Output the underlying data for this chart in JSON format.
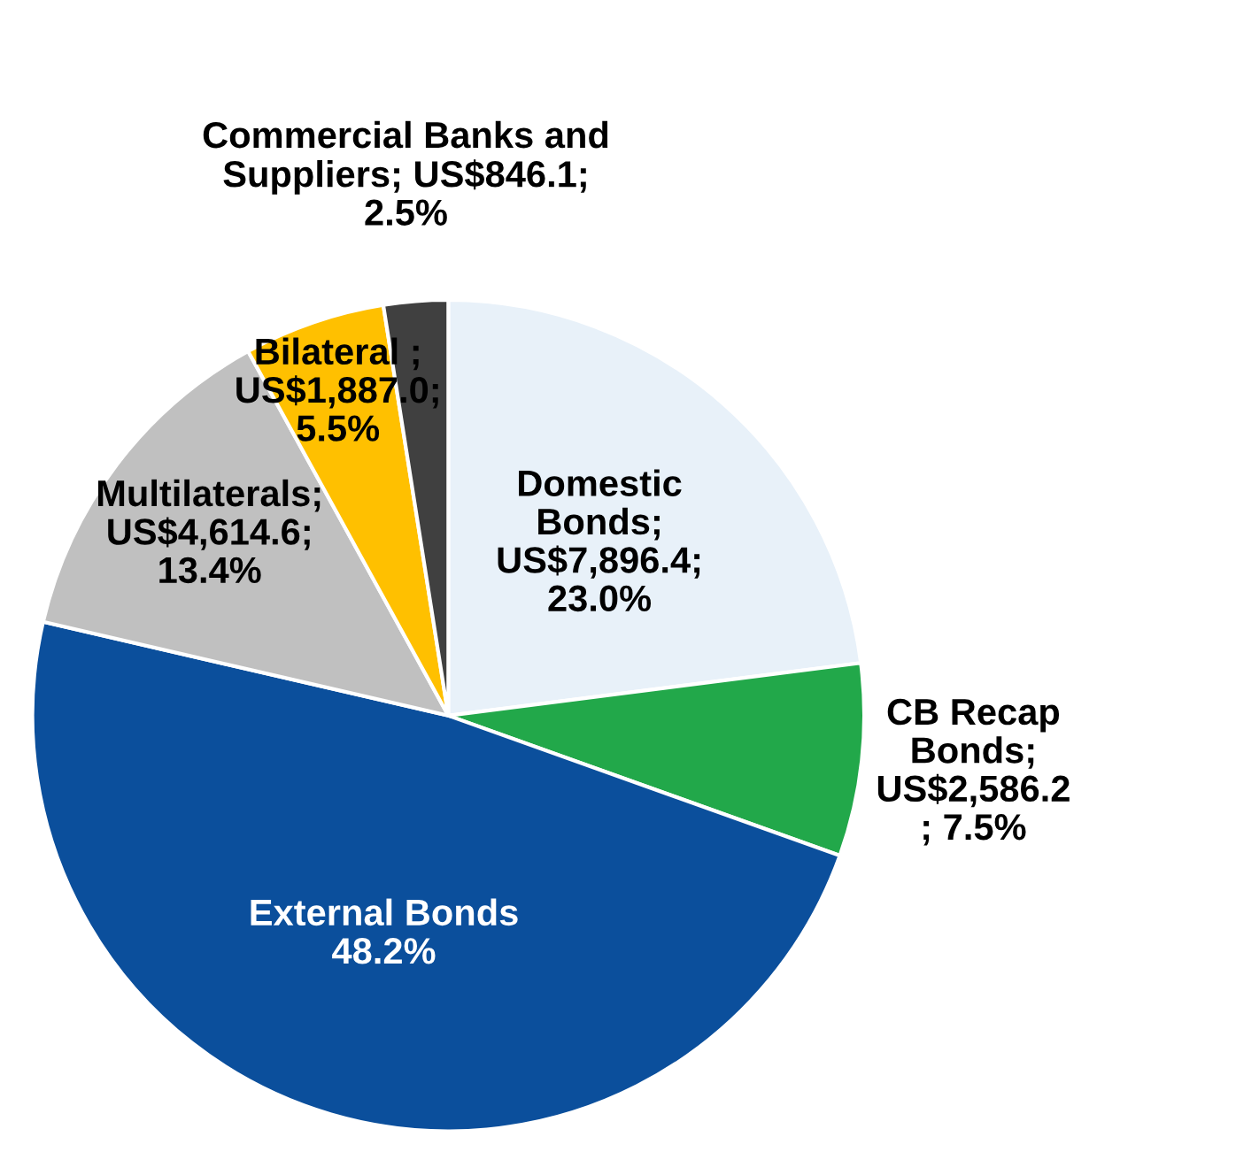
{
  "chart_data": {
    "type": "pie",
    "categories": [
      "Domestic\nBonds;\nUS$7,896.4;\n23.0%",
      "CB Recap\nBonds;\nUS$2,586.2\n; 7.5%",
      "External Bonds\n48.2%",
      "Multilaterals;\nUS$4,614.6;\n13.4%",
      "Bilateral ;\nUS$1,887.0;\n5.5%",
      "Commercial Banks and\nSuppliers; US$846.1;\n2.5%"
    ],
    "values": [
      23.0,
      7.5,
      48.2,
      13.4,
      5.5,
      2.5
    ],
    "colors": [
      "#e8f1f9",
      "#22a84a",
      "#0b4f9c",
      "#c0c0c0",
      "#ffc000",
      "#404040"
    ]
  }
}
